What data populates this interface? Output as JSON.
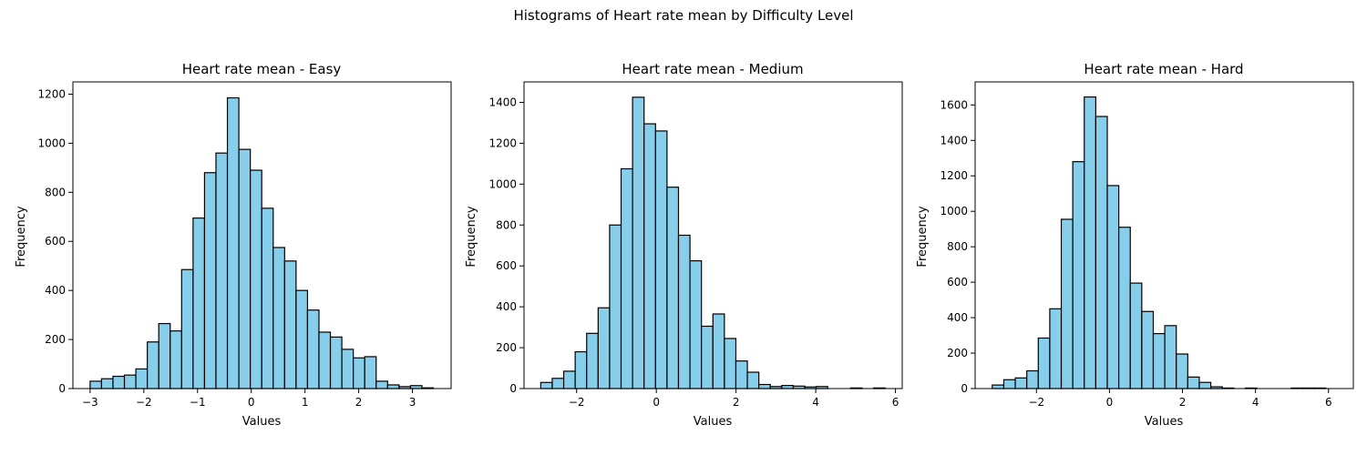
{
  "figure": {
    "suptitle": "Histograms of Heart rate mean by Difficulty Level"
  },
  "chart_data": [
    {
      "type": "bar",
      "title": "Heart rate mean - Easy",
      "xlabel": "Values",
      "ylabel": "Frequency",
      "xlim": [
        -3.32,
        3.72
      ],
      "ylim": [
        0,
        1250
      ],
      "xticks": [
        -3,
        -2,
        -1,
        0,
        1,
        2,
        3
      ],
      "yticks": [
        0,
        200,
        400,
        600,
        800,
        1000,
        1200
      ],
      "bin_start": -3.0,
      "bin_width": 0.213,
      "values": [
        30,
        40,
        50,
        55,
        80,
        190,
        265,
        235,
        485,
        695,
        880,
        960,
        1185,
        975,
        890,
        735,
        575,
        520,
        400,
        320,
        230,
        210,
        160,
        125,
        130,
        30,
        15,
        8,
        12,
        3
      ],
      "bar_color": "#87ceeb",
      "edge_color": "#000000"
    },
    {
      "type": "bar",
      "title": "Heart rate mean - Medium",
      "xlabel": "Values",
      "ylabel": "Frequency",
      "xlim": [
        -3.32,
        6.17
      ],
      "ylim": [
        0,
        1500
      ],
      "xticks": [
        -2,
        0,
        2,
        4,
        6
      ],
      "yticks": [
        0,
        200,
        400,
        600,
        800,
        1000,
        1200,
        1400
      ],
      "bin_start": -2.9,
      "bin_width": 0.288,
      "values": [
        30,
        50,
        85,
        180,
        270,
        395,
        800,
        1075,
        1425,
        1295,
        1260,
        985,
        750,
        625,
        305,
        365,
        245,
        135,
        80,
        20,
        10,
        15,
        12,
        8,
        10,
        0,
        0,
        3,
        0,
        3
      ],
      "bar_color": "#87ceeb",
      "edge_color": "#000000"
    },
    {
      "type": "bar",
      "title": "Heart rate mean - Hard",
      "xlabel": "Values",
      "ylabel": "Frequency",
      "xlim": [
        -3.68,
        6.68
      ],
      "ylim": [
        0,
        1730
      ],
      "xticks": [
        -2,
        0,
        2,
        4,
        6
      ],
      "yticks": [
        0,
        200,
        400,
        600,
        800,
        1000,
        1200,
        1400,
        1600
      ],
      "bin_start": -3.21,
      "bin_width": 0.315,
      "values": [
        20,
        50,
        60,
        100,
        285,
        450,
        955,
        1280,
        1645,
        1535,
        1145,
        910,
        595,
        435,
        310,
        355,
        195,
        65,
        35,
        10,
        3,
        0,
        3,
        0,
        0,
        0,
        3,
        3,
        3,
        0
      ],
      "bar_color": "#87ceeb",
      "edge_color": "#000000"
    }
  ]
}
